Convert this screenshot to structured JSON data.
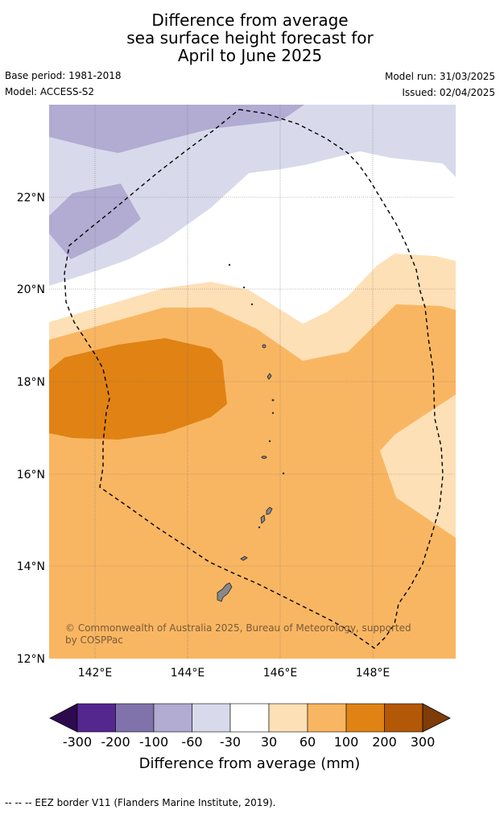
{
  "title": {
    "line1": "Difference from average",
    "line2": "sea surface height forecast for",
    "line3": "April to June 2025"
  },
  "meta": {
    "base_period": "Base period: 1981-2018",
    "model": "Model: ACCESS-S2",
    "model_run": "Model run: 31/03/2025",
    "issued": "Issued: 02/04/2025"
  },
  "map": {
    "lon_labels": [
      "142°E",
      "144°E",
      "146°E",
      "148°E"
    ],
    "lat_labels": [
      "22°N",
      "20°N",
      "18°N",
      "16°N",
      "14°N",
      "12°N"
    ],
    "copyright_line1": "© Commonwealth of Australia 2025, Bureau of Meteorology, supported",
    "copyright_line2": "by COSPPac"
  },
  "colorbar": {
    "ticks": [
      "-300",
      "-200",
      "-100",
      "-60",
      "-30",
      "30",
      "60",
      "100",
      "200",
      "300"
    ],
    "label": "Difference from average (mm)",
    "colors": [
      "#2d0a4e",
      "#54278f",
      "#8073ac",
      "#b2abd2",
      "#d8daeb",
      "#ffffff",
      "#fee0b6",
      "#f9b662",
      "#e08214",
      "#b35806",
      "#7f3b08"
    ]
  },
  "footer": {
    "eez_note": "--  --  -- EEZ border V11 (Flanders Marine Institute, 2019)."
  }
}
